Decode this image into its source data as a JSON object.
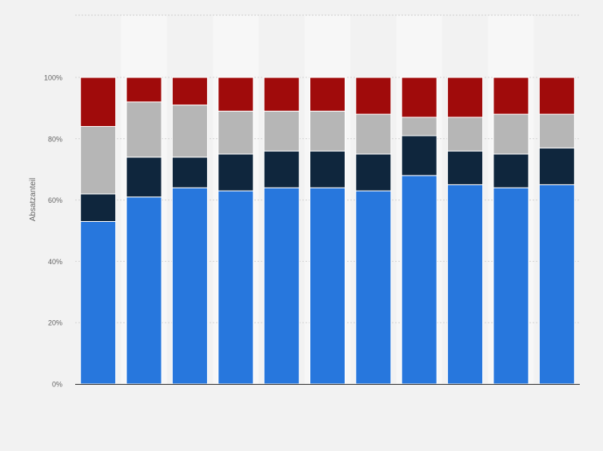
{
  "chart_data": {
    "type": "bar",
    "stacked": true,
    "categories": [
      "",
      "",
      "",
      "",
      "",
      "",
      "",
      "",
      "",
      "",
      ""
    ],
    "series": [
      {
        "color": "#2777dd",
        "values": [
          53,
          61,
          64,
          63,
          64,
          64,
          63,
          68,
          65,
          64,
          65
        ]
      },
      {
        "color": "#0f263d",
        "values": [
          9,
          13,
          10,
          12,
          12,
          12,
          12,
          13,
          11,
          11,
          12
        ]
      },
      {
        "color": "#b6b6b6",
        "values": [
          22,
          18,
          17,
          14,
          13,
          13,
          13,
          6,
          11,
          13,
          11
        ]
      },
      {
        "color": "#a00b0b",
        "values": [
          16,
          8,
          9,
          11,
          11,
          11,
          12,
          13,
          13,
          12,
          12
        ]
      }
    ],
    "ylabel": "Absatzanteil",
    "yticks": [
      "0%",
      "20%",
      "40%",
      "60%",
      "80%",
      "100%"
    ],
    "ylim": [
      0,
      100
    ],
    "grid": true,
    "legend": "none"
  }
}
